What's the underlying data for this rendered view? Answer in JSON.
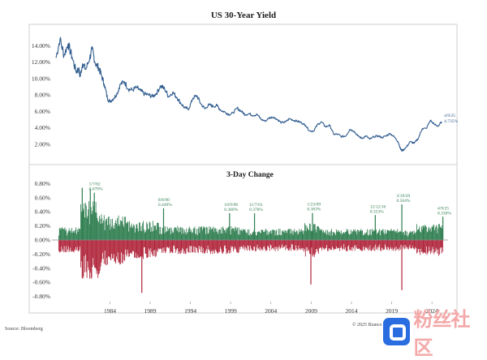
{
  "chart_data": [
    {
      "type": "line",
      "title": "US 30-Year Yield",
      "xlabel": "",
      "ylabel": "",
      "ylim": [
        0,
        16
      ],
      "xlim": [
        1977.2,
        2026.0
      ],
      "y_ticks": [
        "2.00%",
        "4.00%",
        "6.00%",
        "8.00%",
        "10.00%",
        "12.00%",
        "14.00%"
      ],
      "y_tick_values": [
        2,
        4,
        6,
        8,
        10,
        12,
        14
      ],
      "grid": false,
      "line_color": "#2f5b8e",
      "series": [
        {
          "x": [
            1977.3,
            1977.8,
            1978.3,
            1978.8,
            1979.3,
            1979.8,
            1980.1,
            1980.3,
            1980.6,
            1981.0,
            1981.5,
            1981.8,
            1982.2,
            1982.6,
            1982.9,
            1983.3,
            1983.7,
            1984.0,
            1984.5,
            1984.9,
            1985.3,
            1985.8,
            1986.3,
            1986.8,
            1987.3,
            1987.8,
            1988.3,
            1988.8,
            1989.3,
            1989.8,
            1990.3,
            1990.8,
            1991.3,
            1991.8,
            1992.3,
            1992.8,
            1993.3,
            1993.8,
            1994.3,
            1994.8,
            1995.3,
            1995.8,
            1996.3,
            1996.8,
            1997.3,
            1997.8,
            1998.3,
            1998.8,
            1999.3,
            1999.8,
            2000.3,
            2000.8,
            2001.3,
            2001.8,
            2002.3,
            2002.8,
            2003.3,
            2003.8,
            2004.3,
            2004.8,
            2005.3,
            2005.8,
            2006.3,
            2006.8,
            2007.3,
            2007.8,
            2008.3,
            2008.8,
            2009.3,
            2009.8,
            2010.3,
            2010.8,
            2011.3,
            2011.8,
            2012.3,
            2012.8,
            2013.3,
            2013.8,
            2014.3,
            2014.8,
            2015.3,
            2015.8,
            2016.3,
            2016.8,
            2017.3,
            2017.8,
            2018.3,
            2018.8,
            2019.3,
            2019.8,
            2020.1,
            2020.3,
            2020.8,
            2021.3,
            2021.8,
            2022.3,
            2022.8,
            2023.3,
            2023.8,
            2024.3,
            2024.8,
            2025.2
          ],
          "y": [
            12.5,
            14.8,
            12.8,
            14.2,
            12.6,
            10.8,
            11.2,
            10.2,
            11.8,
            11.1,
            12.5,
            13.6,
            11.8,
            11.3,
            10.5,
            9.3,
            7.5,
            7.2,
            7.6,
            8.2,
            9.3,
            9.6,
            8.7,
            8.6,
            8.9,
            8.5,
            8.1,
            8.0,
            7.8,
            8.2,
            9.1,
            8.7,
            7.8,
            8.3,
            7.7,
            7.0,
            6.4,
            6.3,
            7.6,
            7.9,
            6.9,
            6.3,
            6.8,
            6.6,
            6.7,
            6.1,
            5.9,
            5.6,
            5.8,
            6.4,
            6.0,
            5.6,
            5.7,
            5.5,
            5.6,
            5.0,
            4.8,
            5.2,
            5.3,
            5.0,
            4.6,
            4.7,
            5.1,
            4.9,
            4.8,
            4.6,
            4.3,
            3.6,
            3.6,
            4.4,
            4.7,
            4.1,
            4.3,
            3.2,
            3.2,
            2.9,
            3.0,
            3.8,
            3.6,
            3.0,
            2.7,
            3.0,
            2.6,
            2.9,
            3.0,
            2.8,
            3.0,
            3.3,
            2.9,
            2.3,
            1.4,
            1.2,
            1.6,
            2.3,
            2.1,
            2.7,
            3.9,
            3.9,
            4.9,
            4.4,
            4.2,
            4.73
          ]
        }
      ],
      "annotations": [
        {
          "date": "4/9/25",
          "value": "4.735%"
        }
      ]
    },
    {
      "type": "bar",
      "title": "3-Day Change",
      "xlabel": "",
      "ylabel": "",
      "ylim": [
        -0.85,
        0.85
      ],
      "xlim": [
        1977.2,
        2026.0
      ],
      "y_ticks": [
        "-0.80%",
        "-0.60%",
        "-0.40%",
        "-0.20%",
        "0.00%",
        "0.20%",
        "0.40%",
        "0.60%",
        "0.80%"
      ],
      "y_tick_values": [
        -0.8,
        -0.6,
        -0.4,
        -0.2,
        0.0,
        0.2,
        0.4,
        0.6,
        0.8
      ],
      "x_ticks": [
        "1984",
        "1989",
        "1994",
        "1999",
        "2004",
        "2009",
        "2014",
        "2019",
        "2024"
      ],
      "x_tick_values": [
        1984,
        1989,
        1994,
        1999,
        2004,
        2009,
        2014,
        2019,
        2024
      ],
      "positive_color": "#2e7d4f",
      "negative_color": "#b0243a",
      "grid": false,
      "annotations": [
        {
          "date": "1/7/82",
          "value": "0.670%",
          "x": 1982.0,
          "y": 0.67
        },
        {
          "date": "8/8/90",
          "value": "0.449%",
          "x": 1990.6,
          "y": 0.449
        },
        {
          "date": "10/9/98",
          "value": "0.380%",
          "x": 1998.8,
          "y": 0.38
        },
        {
          "date": "11/7/01",
          "value": "0.378%",
          "x": 2001.9,
          "y": 0.378
        },
        {
          "date": "1/23/09",
          "value": "0.383%",
          "x": 2009.1,
          "y": 0.383
        },
        {
          "date": "12/12/16",
          "value": "0.353%",
          "x": 2016.9,
          "y": 0.353
        },
        {
          "date": "3/19/20",
          "value": "0.504%",
          "x": 2020.2,
          "y": 0.504
        },
        {
          "date": "4/9/25",
          "value": "0.330%",
          "x": 2025.3,
          "y": 0.33
        }
      ],
      "extremes": [
        {
          "x": 1987.9,
          "y": -0.75
        },
        {
          "x": 2008.9,
          "y": -0.63
        },
        {
          "x": 2020.2,
          "y": -0.71
        },
        {
          "x": 1980.5,
          "y": 0.74
        },
        {
          "x": 1981.5,
          "y": 0.72
        }
      ]
    }
  ],
  "footer": {
    "source": "Source: Bloomberg",
    "copyright": "© 2025 Bianco"
  },
  "watermark": {
    "text": "粉丝社区",
    "icon": "brand-logo-icon"
  }
}
